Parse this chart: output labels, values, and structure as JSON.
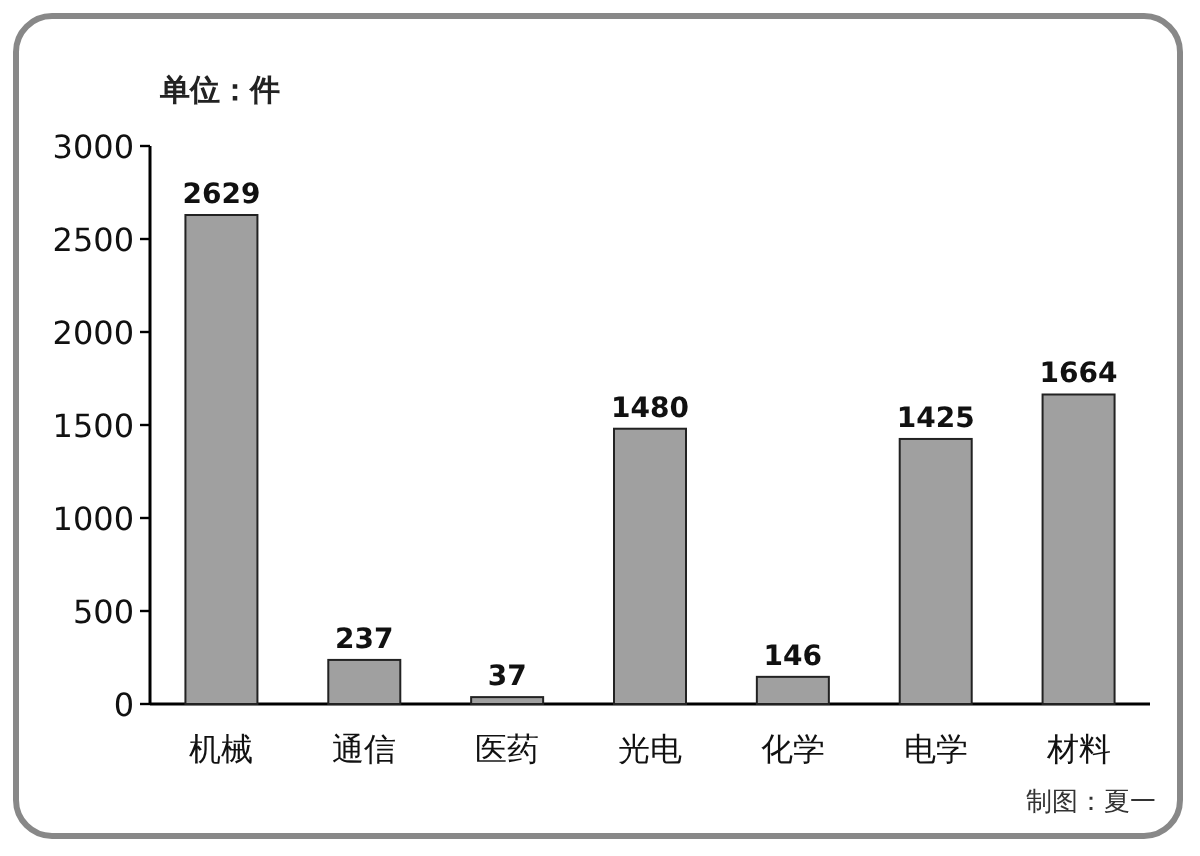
{
  "chart_data": {
    "type": "bar",
    "ylabel": "单位：件",
    "categories": [
      "机械",
      "通信",
      "医药",
      "光电",
      "化学",
      "电学",
      "材料"
    ],
    "values": [
      2629,
      237,
      37,
      1480,
      146,
      1425,
      1664
    ],
    "color": "#a0a0a0",
    "ylim": [
      0,
      3000
    ],
    "yticks": [
      0,
      500,
      1000,
      1500,
      2000,
      2500,
      3000
    ],
    "data_labels": true,
    "annotations": [
      "制图：夏一"
    ]
  }
}
